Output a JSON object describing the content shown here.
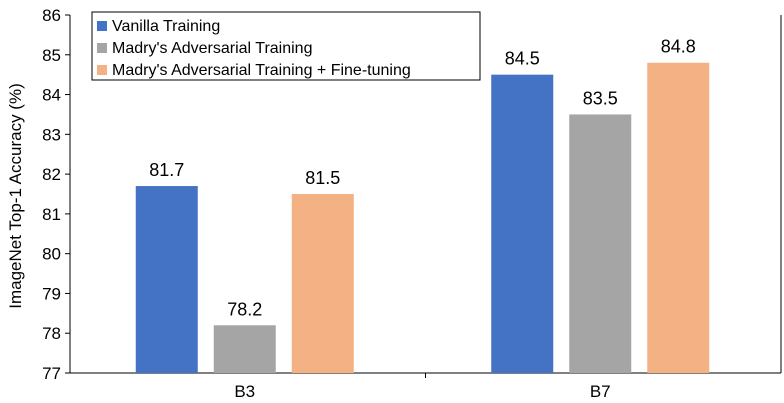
{
  "chart_data": {
    "type": "bar",
    "categories": [
      "B3",
      "B7"
    ],
    "series": [
      {
        "name": "Vanilla Training",
        "values": [
          81.7,
          84.5
        ],
        "color": "#4472C4"
      },
      {
        "name": "Madry's Adversarial Training",
        "values": [
          78.2,
          83.5
        ],
        "color": "#A5A5A5"
      },
      {
        "name": "Madry's Adversarial Training + Fine-tuning",
        "values": [
          81.5,
          84.8
        ],
        "color": "#F4B183"
      }
    ],
    "data_labels": [
      [
        "81.7",
        "84.5"
      ],
      [
        "78.2",
        "83.5"
      ],
      [
        "81.5",
        "84.8"
      ]
    ],
    "ylabel": "ImageNet Top-1 Accuracy (%)",
    "xlabel": "",
    "ylim": [
      77,
      86
    ],
    "yticks": [
      77,
      78,
      79,
      80,
      81,
      82,
      83,
      84,
      85,
      86
    ],
    "grid": false,
    "legend_position": "top-left"
  }
}
